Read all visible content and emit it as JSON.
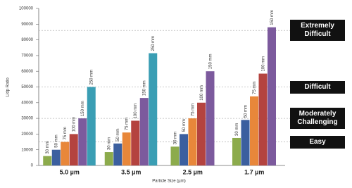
{
  "chart_data": {
    "type": "bar",
    "categories": [
      "5.0 µm",
      "3.5 µm",
      "2.5 µm",
      "1.7 µm"
    ],
    "x_label": "Particle Size (µm)",
    "y_label": "L/dp Ratio",
    "ylim": [
      0,
      100000
    ],
    "yticks": [
      0,
      10000,
      20000,
      30000,
      40000,
      50000,
      60000,
      70000,
      80000,
      90000,
      100000
    ],
    "series": [
      {
        "name": "30 mm",
        "color": "#8cab4c",
        "values": [
          6000,
          8500,
          12000,
          17500
        ]
      },
      {
        "name": "50 mm",
        "color": "#3b5f9f",
        "values": [
          10000,
          14000,
          20000,
          29000
        ]
      },
      {
        "name": "75 mm",
        "color": "#e8873a",
        "values": [
          15000,
          21000,
          30000,
          44000
        ]
      },
      {
        "name": "100 mm",
        "color": "#b4433f",
        "values": [
          20000,
          28500,
          40000,
          58500
        ]
      },
      {
        "name": "150 mm",
        "color": "#7c5a9d",
        "values": [
          30000,
          43000,
          60000,
          88000
        ]
      },
      {
        "name": "250 mm",
        "color": "#3a9eb4",
        "values": [
          50000,
          71500,
          null,
          null
        ]
      }
    ],
    "thresholds": [
      {
        "label": "Extremely Difficult",
        "value": 86000
      },
      {
        "label": "Difficult",
        "value": 50000
      },
      {
        "label": "Moderately Challenging",
        "value": 30000
      },
      {
        "label": "Easy",
        "value": 15000
      }
    ]
  }
}
